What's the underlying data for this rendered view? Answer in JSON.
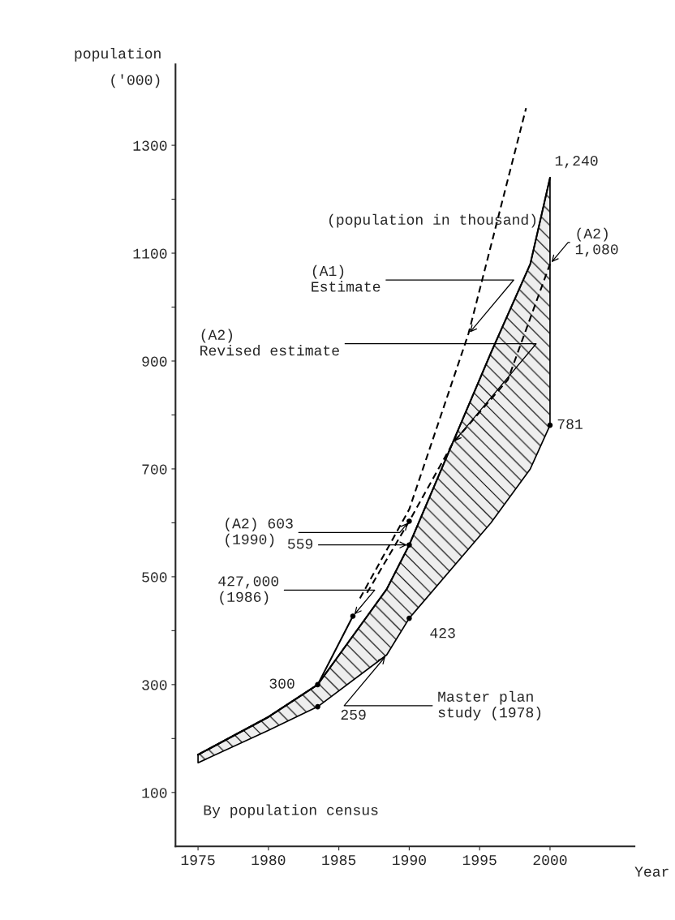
{
  "chart_data": {
    "type": "line",
    "ylabel": "population\n('000)",
    "xlabel": "Year",
    "xlim": [
      1973.4,
      2006
    ],
    "xticks": [
      1975,
      1980,
      1985,
      1990,
      1995,
      2000
    ],
    "ylim": [
      0,
      1450
    ],
    "yticks": [
      100,
      {
        "value": 200,
        "label": null
      },
      300,
      {
        "value": 400,
        "label": null
      },
      500,
      {
        "value": 600,
        "label": null
      },
      700,
      {
        "value": 800,
        "label": null
      },
      900,
      {
        "value": 1000,
        "label": null
      },
      1100,
      {
        "value": 1200,
        "label": null
      },
      1300
    ],
    "grid": false,
    "legend": false,
    "series": [
      {
        "color": "#000000",
        "x": [
          1975,
          1980,
          1983.5,
          1988.4,
          1990,
          1995.8,
          1998.6,
          2000
        ],
        "values": [
          170,
          240,
          300,
          477,
          559,
          915,
          1080,
          1240
        ],
        "lower": [
          155,
          215,
          259,
          355,
          423,
          600,
          700,
          781
        ],
        "upper": [
          170,
          240,
          300,
          477,
          559,
          915,
          1080,
          1240
        ]
      },
      {
        "type": "line",
        "color": "#000000",
        "line_style": "solid",
        "x": [
          1975,
          1980,
          1983.5,
          1986
        ],
        "values": [
          170,
          240,
          300,
          427
        ]
      },
      {
        "type": "line",
        "color": "#000000",
        "line_style": "dashed",
        "x": [
          1986.5,
          1990,
          1994.2,
          1998.3
        ],
        "values": [
          460,
          625,
          950,
          1369
        ]
      },
      {
        "type": "line",
        "color": "#000000",
        "line_style": "dashed",
        "x": [
          1987,
          1990,
          1993.1,
          1997,
          2000
        ],
        "values": [
          470,
          603,
          748,
          865,
          1080
        ]
      },
      {
        "type": "scatter",
        "color": "#000000",
        "marker": "circle",
        "x": [
          1983.5,
          1983.5,
          1986,
          1990,
          1990,
          1990,
          2000
        ],
        "values": [
          300,
          259,
          427,
          603,
          559,
          423,
          781
        ]
      }
    ],
    "annotations": [
      "(population in thousand)",
      {
        "text": "1,240",
        "x": 2000,
        "y": 1240
      },
      {
        "text": "(A2)\n1,080",
        "x": 2000,
        "y": 1080
      },
      {
        "text": "(A1)\nEstimate",
        "x": 1994.2,
        "y": 950
      },
      {
        "text": "(A2)\nRevised estimate",
        "x": 1993.1,
        "y": 748
      },
      {
        "text": "781",
        "x": 2000,
        "y": 781
      },
      {
        "text": "(A2) 603\n(1990)",
        "x": 1990,
        "y": 603
      },
      {
        "text": "559",
        "x": 1990,
        "y": 559
      },
      {
        "text": "427,000\n(1986)",
        "x": 1986,
        "y": 427
      },
      {
        "text": "423",
        "x": 1990,
        "y": 423
      },
      {
        "text": "300",
        "x": 1983.5,
        "y": 300
      },
      {
        "text": "259",
        "x": 1983.5,
        "y": 259
      },
      {
        "text": "Master plan\nstudy (1978)",
        "x": 1988.4,
        "y": 355
      },
      "By population census"
    ]
  }
}
